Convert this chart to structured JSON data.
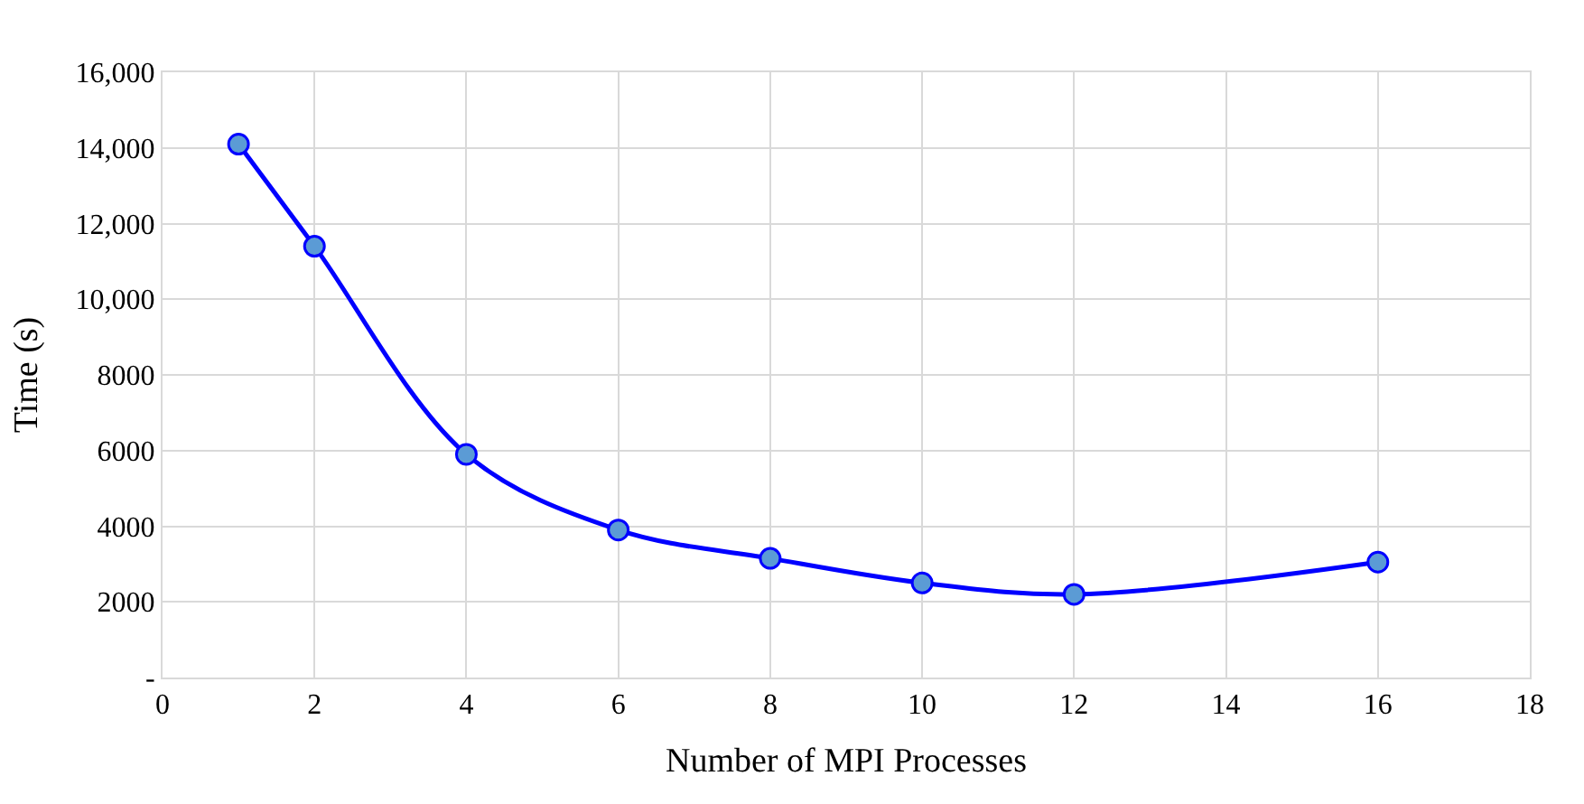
{
  "chart_data": {
    "type": "line",
    "xlabel": "Number of MPI Processes",
    "ylabel": "Time (s)",
    "x": [
      1,
      2,
      4,
      6,
      8,
      10,
      12,
      16
    ],
    "series": [
      {
        "color": "#0000ff",
        "values": [
          14100,
          11400,
          5900,
          3900,
          3150,
          2500,
          2200,
          3050
        ]
      }
    ],
    "xlim": [
      0,
      18
    ],
    "xticks": [
      0,
      2,
      4,
      6,
      8,
      10,
      12,
      14,
      16,
      18
    ],
    "ylim": [
      0,
      16000
    ],
    "yticks": [
      {
        "value": 0,
        "label": "-"
      },
      2000,
      4000,
      6000,
      8000,
      {
        "value": 10000,
        "label": "10,000"
      },
      {
        "value": 12000,
        "label": "12,000"
      },
      {
        "value": 14000,
        "label": "14,000"
      },
      {
        "value": 16000,
        "label": "16,000"
      }
    ],
    "grid": true,
    "marker": "circle",
    "line_style": "solid"
  }
}
